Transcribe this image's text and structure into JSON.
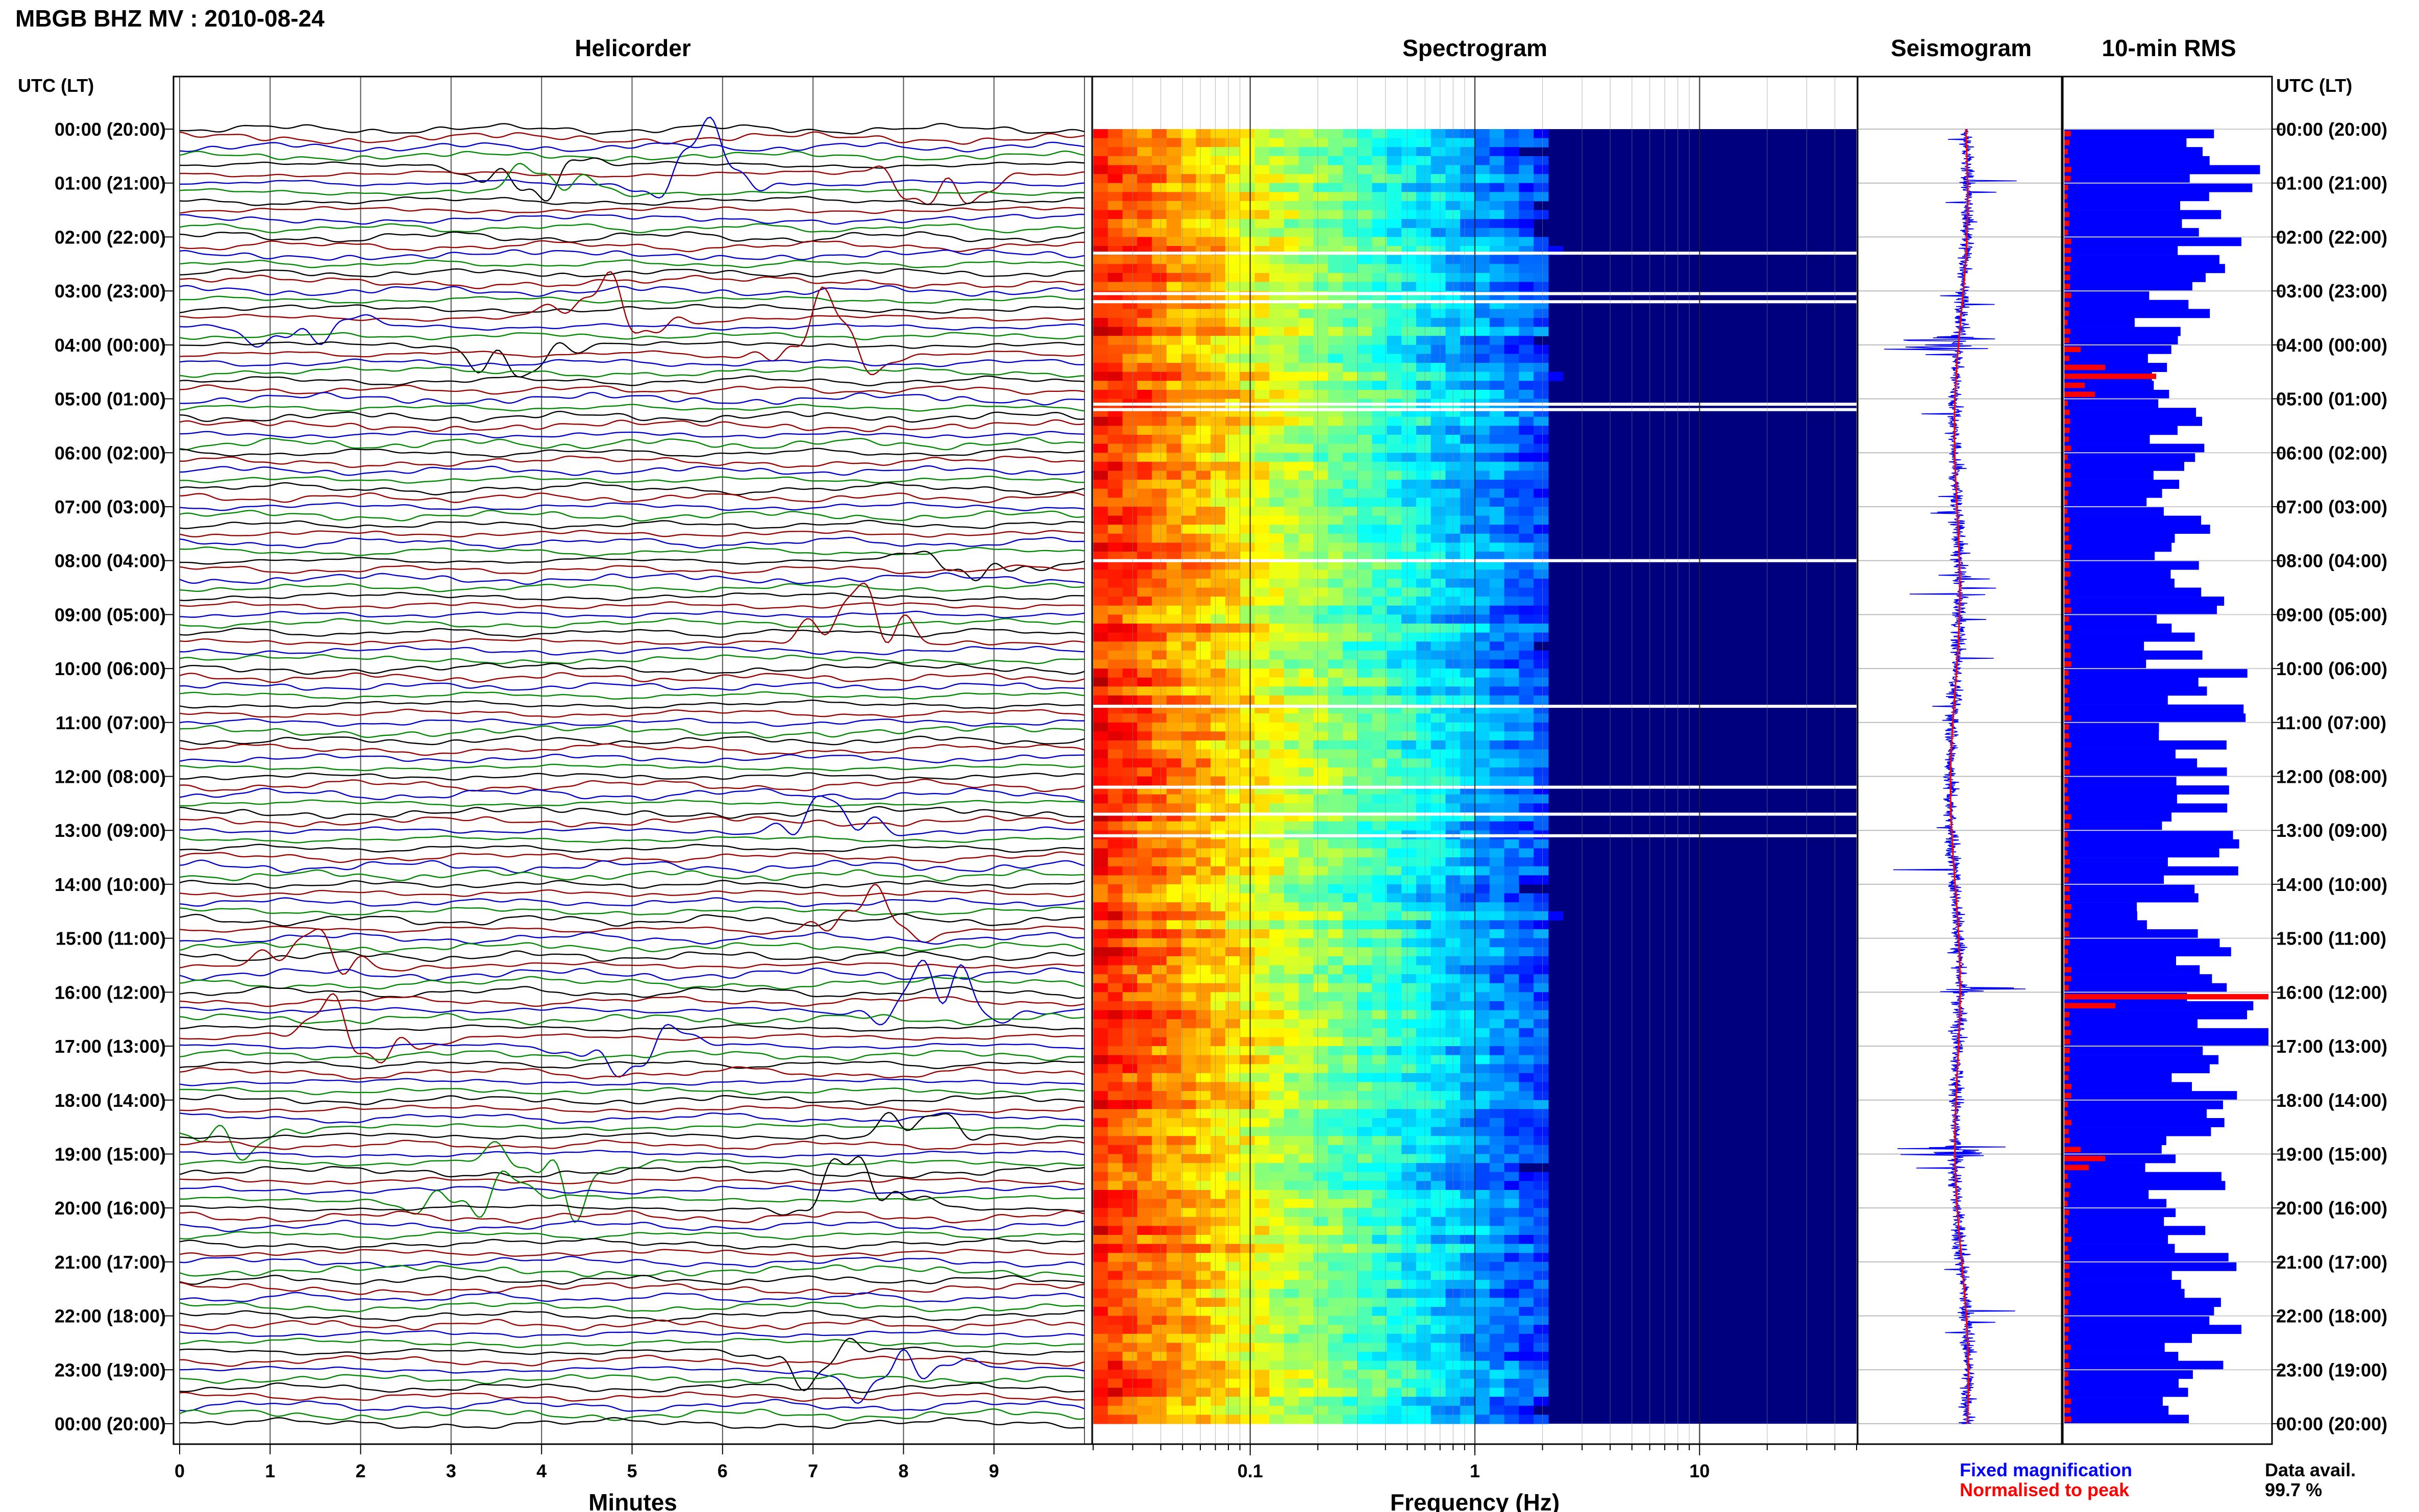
{
  "title": "MBGB BHZ MV : 2010-08-24",
  "panels": {
    "helicorder": "Helicorder",
    "spectrogram": "Spectrogram",
    "seismogram": "Seismogram",
    "rms": "10-min RMS"
  },
  "time_axis_label": "UTC (LT)",
  "time_labels": [
    "00:00 (20:00)",
    "01:00 (21:00)",
    "02:00 (22:00)",
    "03:00 (23:00)",
    "04:00 (00:00)",
    "05:00 (01:00)",
    "06:00 (02:00)",
    "07:00 (03:00)",
    "08:00 (04:00)",
    "09:00 (05:00)",
    "10:00 (06:00)",
    "11:00 (07:00)",
    "12:00 (08:00)",
    "13:00 (09:00)",
    "14:00 (10:00)",
    "15:00 (11:00)",
    "16:00 (12:00)",
    "17:00 (13:00)",
    "18:00 (14:00)",
    "19:00 (15:00)",
    "20:00 (16:00)",
    "21:00 (17:00)",
    "22:00 (18:00)",
    "23:00 (19:00)",
    "00:00 (20:00)"
  ],
  "legend": {
    "fixed": "Fixed magnification",
    "normalised": "Normalised to peak",
    "fixed_color": "#0000ff",
    "normalised_color": "#ff0000",
    "data_avail_label": "Data avail.",
    "data_avail_value": "99.7 %"
  },
  "chart_data": [
    {
      "type": "line",
      "name": "helicorder",
      "title": "Helicorder",
      "xlabel": "Minutes",
      "xlim": [
        0,
        10
      ],
      "x_ticks": [
        "0",
        "1",
        "2",
        "3",
        "4",
        "5",
        "6",
        "7",
        "8",
        "9"
      ],
      "rows_per_hour": 6,
      "trace_colors": [
        "#000000",
        "#990000",
        "#0000cc",
        "#008800"
      ],
      "large_events_hour": [
        0.75,
        1.1,
        3.6,
        4.1,
        4.2,
        8.0,
        9.5,
        13.0,
        14.8,
        15.5,
        16.3,
        16.9,
        18.6,
        19.2,
        19.8,
        20.0,
        22.7,
        23.0
      ]
    },
    {
      "type": "heatmap",
      "name": "spectrogram",
      "title": "Spectrogram",
      "xlabel": "Frequency (Hz)",
      "x_scale": "log",
      "xlim": [
        0.02,
        50
      ],
      "x_ticks": [
        "0.1",
        "1",
        "10"
      ],
      "gap_hours": [
        2.3,
        3.05,
        3.2,
        5.1,
        5.2,
        8.0,
        10.7,
        12.2,
        12.7,
        13.1
      ],
      "colormap": [
        "#00007f",
        "#0000ff",
        "#0080ff",
        "#00ffff",
        "#80ff80",
        "#ffff00",
        "#ff8000",
        "#ff0000",
        "#800000"
      ]
    },
    {
      "type": "line",
      "name": "seismogram",
      "title": "Seismogram",
      "series": [
        {
          "name": "Fixed magnification",
          "color": "#0000ff"
        },
        {
          "name": "Normalised to peak",
          "color": "#ff0000"
        }
      ]
    },
    {
      "type": "bar",
      "name": "rms",
      "title": "10-min RMS",
      "orientation": "horizontal",
      "bins": 144,
      "blue_relative_hourly": [
        0.82,
        0.78,
        0.72,
        0.55,
        0.6,
        0.5,
        0.45,
        0.55,
        0.62,
        0.52,
        0.7,
        0.6,
        0.62,
        0.65,
        0.58,
        0.6,
        0.82,
        0.68,
        0.7,
        0.62,
        0.58,
        0.62,
        0.7,
        0.6
      ],
      "red_relative_by_bin": {
        "24": 0.08,
        "26": 0.2,
        "27": 0.45,
        "28": 0.1,
        "29": 0.15,
        "96": 1.0,
        "97": 0.25,
        "113": 0.08,
        "114": 0.2,
        "115": 0.12
      }
    }
  ]
}
